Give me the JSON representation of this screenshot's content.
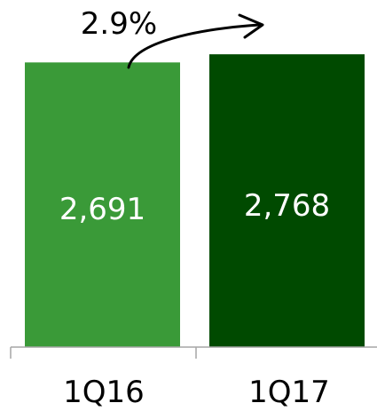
{
  "chart_data": {
    "type": "bar",
    "categories": [
      "1Q16",
      "1Q17"
    ],
    "values": [
      2691,
      2768
    ],
    "value_labels": [
      "2,691",
      "2,768"
    ],
    "bar_colors": [
      "#3a9a38",
      "#004a00"
    ],
    "annotation": "2.9%",
    "ylim": [
      0,
      2870
    ],
    "grid": false,
    "legend": "none"
  }
}
